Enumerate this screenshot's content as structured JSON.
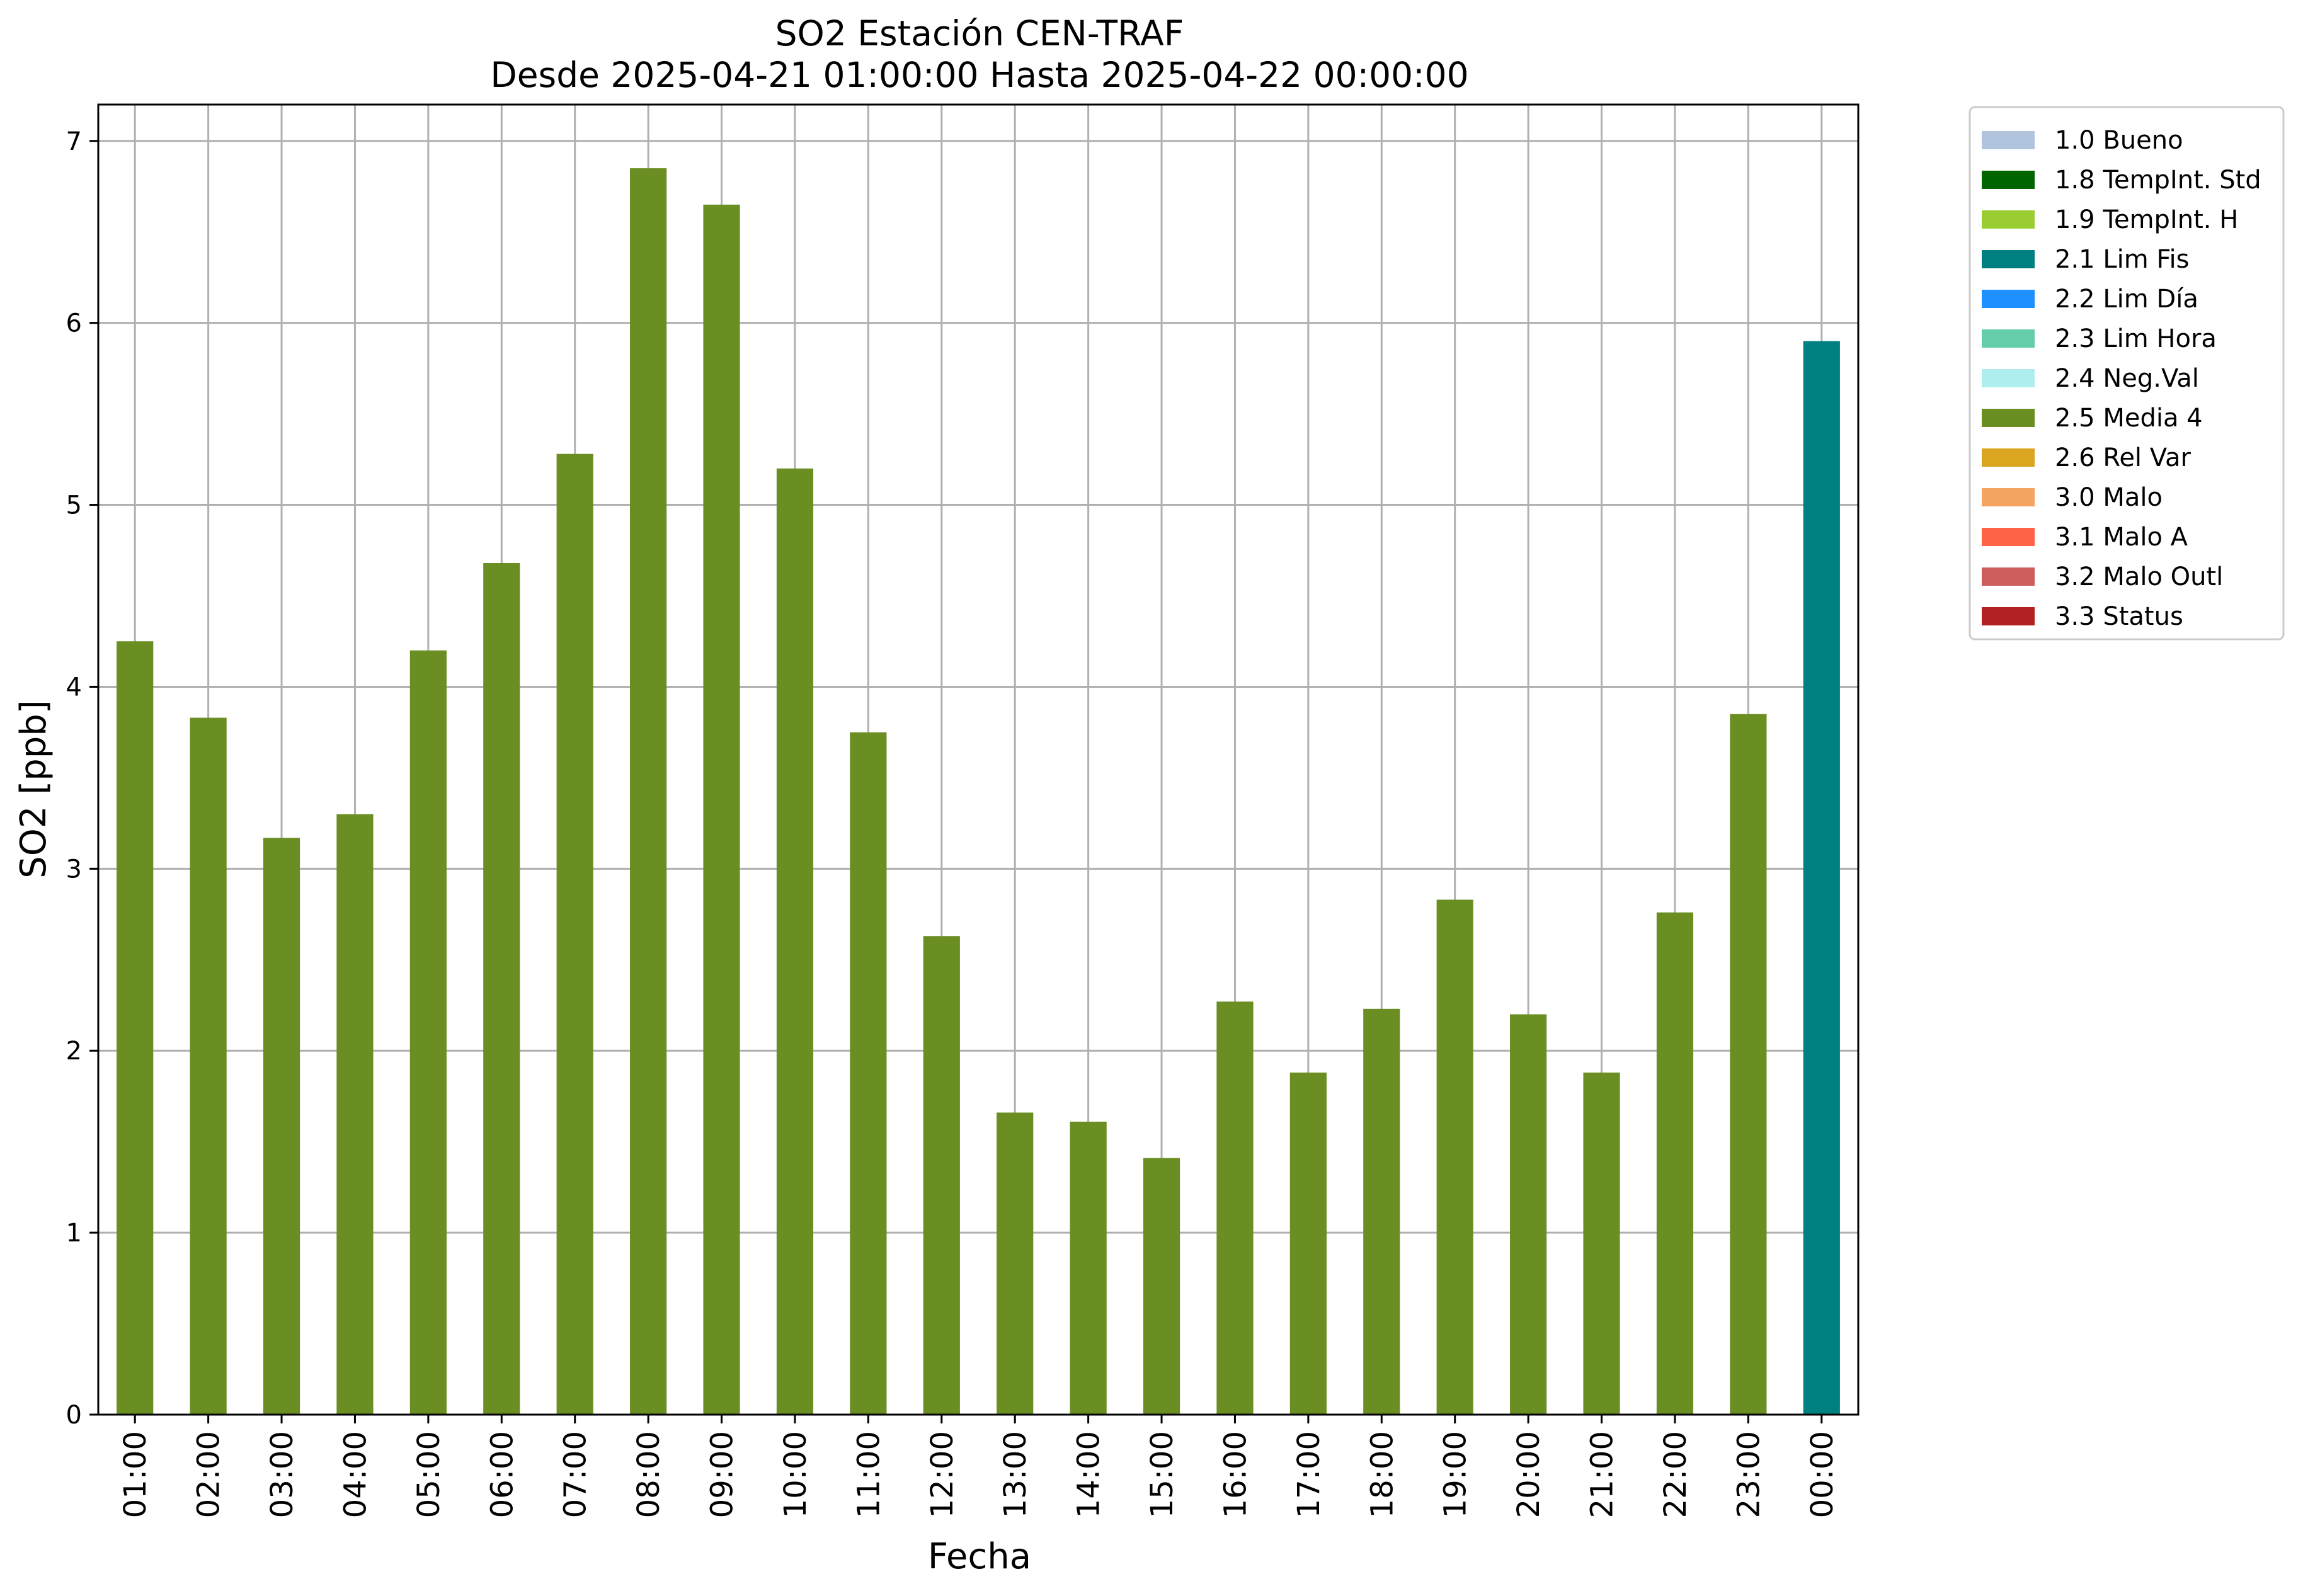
{
  "chart_data": {
    "type": "bar",
    "title": "SO2 Estación CEN-TRAF",
    "subtitle": "Desde 2025-04-21 01:00:00 Hasta 2025-04-22 00:00:00",
    "xlabel": "Fecha",
    "ylabel": "SO2 [ppb]",
    "ylim": [
      0,
      7.2
    ],
    "yticks": [
      "0",
      "1",
      "2",
      "3",
      "4",
      "5",
      "6",
      "7"
    ],
    "grid": true,
    "legend_position": "outside-right",
    "categories": [
      "01:00",
      "02:00",
      "03:00",
      "04:00",
      "05:00",
      "06:00",
      "07:00",
      "08:00",
      "09:00",
      "10:00",
      "11:00",
      "12:00",
      "13:00",
      "14:00",
      "15:00",
      "16:00",
      "17:00",
      "18:00",
      "19:00",
      "20:00",
      "21:00",
      "22:00",
      "23:00",
      "00:00"
    ],
    "values": [
      4.25,
      3.83,
      3.17,
      3.3,
      4.2,
      4.68,
      5.28,
      6.85,
      6.65,
      5.2,
      3.75,
      2.63,
      1.66,
      1.61,
      1.41,
      2.27,
      1.88,
      2.23,
      2.83,
      2.2,
      1.88,
      2.76,
      3.85,
      5.9
    ],
    "bar_flags": [
      "2.5 Media 4",
      "2.5 Media 4",
      "2.5 Media 4",
      "2.5 Media 4",
      "2.5 Media 4",
      "2.5 Media 4",
      "2.5 Media 4",
      "2.5 Media 4",
      "2.5 Media 4",
      "2.5 Media 4",
      "2.5 Media 4",
      "2.5 Media 4",
      "2.5 Media 4",
      "2.5 Media 4",
      "2.5 Media 4",
      "2.5 Media 4",
      "2.5 Media 4",
      "2.5 Media 4",
      "2.5 Media 4",
      "2.5 Media 4",
      "2.5 Media 4",
      "2.5 Media 4",
      "2.5 Media 4",
      "2.1 Lim Fis"
    ],
    "legend": [
      {
        "label": "1.0 Bueno",
        "color": "#b0c4de"
      },
      {
        "label": "1.8 TempInt. Std",
        "color": "#006400"
      },
      {
        "label": "1.9 TempInt. H",
        "color": "#9acd32"
      },
      {
        "label": "2.1 Lim Fis",
        "color": "#008080"
      },
      {
        "label": "2.2 Lim Día",
        "color": "#1e90ff"
      },
      {
        "label": "2.3 Lim Hora",
        "color": "#66cdaa"
      },
      {
        "label": "2.4 Neg.Val",
        "color": "#afeeee"
      },
      {
        "label": "2.5 Media 4",
        "color": "#6b8e23"
      },
      {
        "label": "2.6 Rel Var",
        "color": "#daa520"
      },
      {
        "label": "3.0 Malo",
        "color": "#f4a460"
      },
      {
        "label": "3.1 Malo A",
        "color": "#ff6347"
      },
      {
        "label": "3.2 Malo Outl",
        "color": "#cd5c5c"
      },
      {
        "label": "3.3 Status",
        "color": "#b22222"
      }
    ]
  }
}
